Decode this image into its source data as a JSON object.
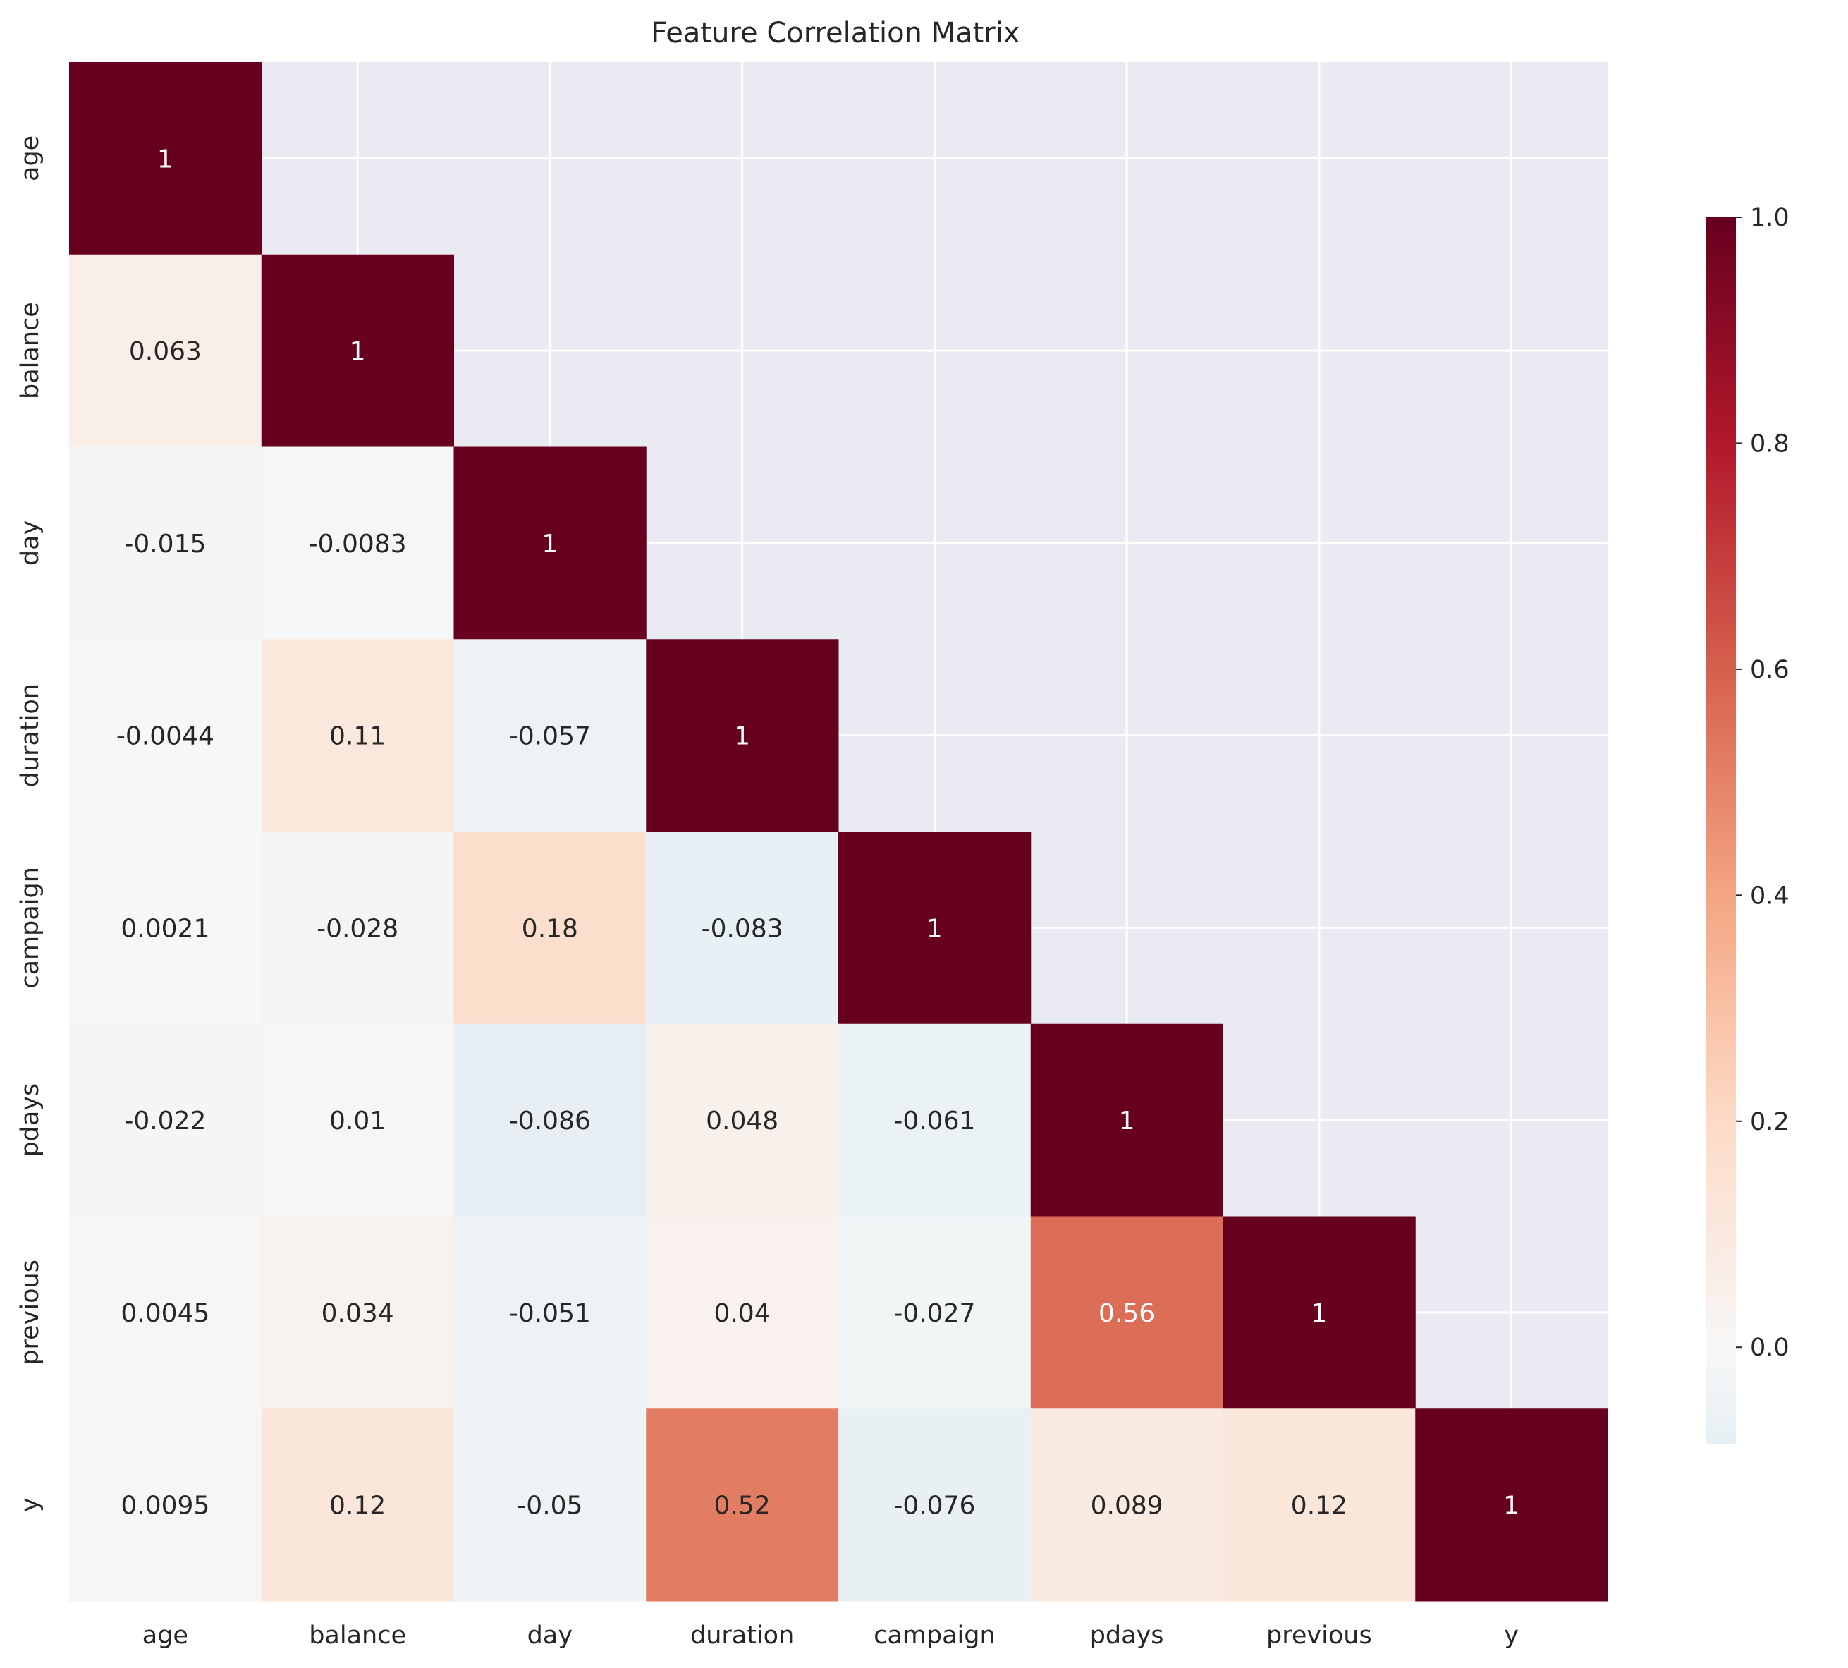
{
  "chart_data": {
    "type": "heatmap",
    "title": "Feature Correlation Matrix",
    "variables": [
      "age",
      "balance",
      "day",
      "duration",
      "campaign",
      "pdays",
      "previous",
      "y"
    ],
    "mask": "upper-triangle",
    "matrix": [
      [
        1,
        null,
        null,
        null,
        null,
        null,
        null,
        null
      ],
      [
        0.063,
        1,
        null,
        null,
        null,
        null,
        null,
        null
      ],
      [
        -0.015,
        -0.0083,
        1,
        null,
        null,
        null,
        null,
        null
      ],
      [
        -0.0044,
        0.11,
        -0.057,
        1,
        null,
        null,
        null,
        null
      ],
      [
        0.0021,
        -0.028,
        0.18,
        -0.083,
        1,
        null,
        null,
        null
      ],
      [
        -0.022,
        0.01,
        -0.086,
        0.048,
        -0.061,
        1,
        null,
        null
      ],
      [
        0.0045,
        0.034,
        -0.051,
        0.04,
        -0.027,
        0.56,
        1,
        null
      ],
      [
        0.0095,
        0.12,
        -0.05,
        0.52,
        -0.076,
        0.089,
        0.12,
        1
      ]
    ],
    "labels": [
      [
        "1",
        "",
        "",
        "",
        "",
        "",
        "",
        ""
      ],
      [
        "0.063",
        "1",
        "",
        "",
        "",
        "",
        "",
        ""
      ],
      [
        "-0.015",
        "-0.0083",
        "1",
        "",
        "",
        "",
        "",
        ""
      ],
      [
        "-0.0044",
        "0.11",
        "-0.057",
        "1",
        "",
        "",
        "",
        ""
      ],
      [
        "0.0021",
        "-0.028",
        "0.18",
        "-0.083",
        "1",
        "",
        "",
        ""
      ],
      [
        "-0.022",
        "0.01",
        "-0.086",
        "0.048",
        "-0.061",
        "1",
        "",
        ""
      ],
      [
        "0.0045",
        "0.034",
        "-0.051",
        "0.04",
        "-0.027",
        "0.56",
        "1",
        ""
      ],
      [
        "0.0095",
        "0.12",
        "-0.05",
        "0.52",
        "-0.076",
        "0.089",
        "0.12",
        "1"
      ]
    ],
    "colormap": "RdBu_r",
    "center": 0,
    "colorbar": {
      "range": [
        -0.086,
        1.0
      ],
      "ticks": [
        0.0,
        0.2,
        0.4,
        0.6,
        0.8,
        1.0
      ],
      "tick_labels": [
        "0.0",
        "0.2",
        "0.4",
        "0.6",
        "0.8",
        "1.0"
      ]
    }
  }
}
